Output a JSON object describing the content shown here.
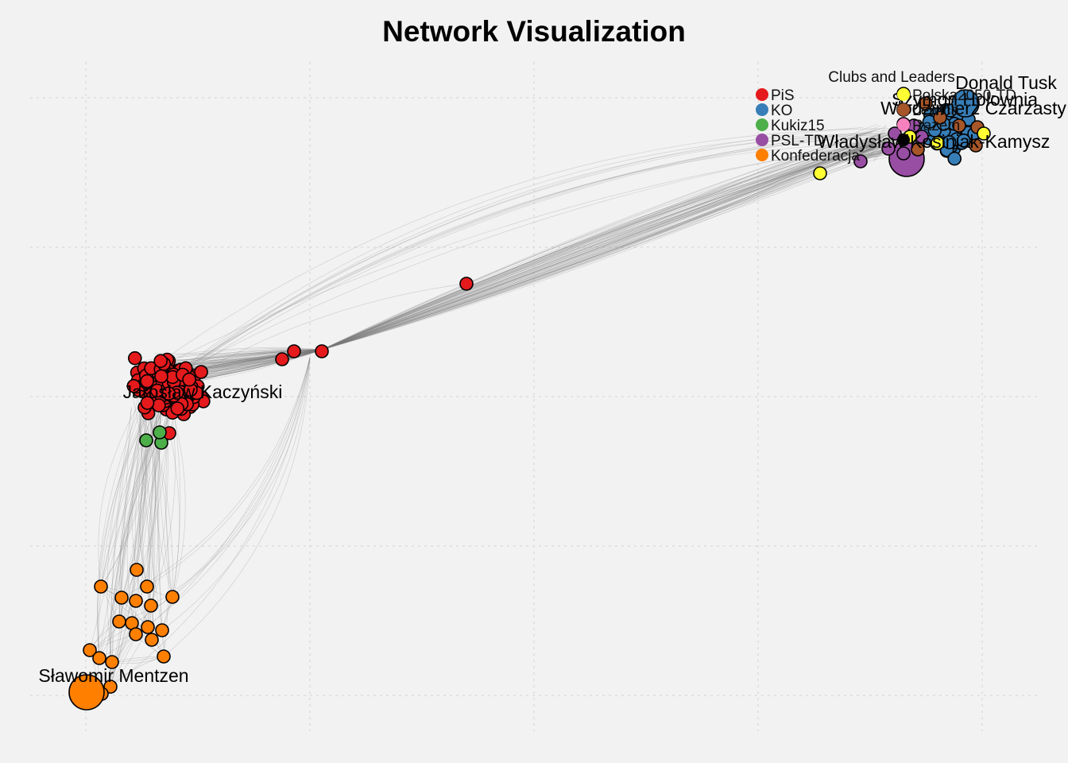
{
  "title": "Network Visualization",
  "colors": {
    "PiS": "#e41a1c",
    "KO": "#377eb8",
    "Kukiz15": "#4daf4a",
    "PSL-TD": "#984ea3",
    "Konfederacja": "#ff7f00",
    "Polska2050-TD": "#ffff33",
    "Lewica": "#a65628",
    "Razem": "#f781bf",
    "Other": "#000000"
  },
  "legend": {
    "title": "Clubs and Leaders",
    "placement": "top-right",
    "items": [
      {
        "label": "PiS",
        "club": "PiS"
      },
      {
        "label": "KO",
        "club": "KO"
      },
      {
        "label": "Kukiz15",
        "club": "Kukiz15"
      },
      {
        "label": "PSL-TD",
        "club": "PSL-TD"
      },
      {
        "label": "Konfederacja",
        "club": "Konfederacja"
      },
      {
        "label": "Polska2050-TD",
        "club": "Polska2050-TD"
      },
      {
        "label": "Lewica",
        "club": "Lewica"
      },
      {
        "label": "Razem",
        "club": "Razem"
      },
      {
        "label": "",
        "club": "Other"
      }
    ]
  },
  "leaders": [
    {
      "name": "Jarosław Kaczyński",
      "club": "PiS"
    },
    {
      "name": "Sławomir Mentzen",
      "club": "Konfederacja"
    },
    {
      "name": "Donald Tusk",
      "club": "KO"
    },
    {
      "name": "Włodzimierz Czarzasty",
      "club": "Lewica"
    },
    {
      "name": "Władysław Kosiniak-Kamysz",
      "club": "PSL-TD"
    },
    {
      "name": "Szymon Hołownia",
      "club": "Polska2050-TD"
    }
  ],
  "chart_data": {
    "type": "network",
    "title": "Network Visualization",
    "grid": true,
    "clusters": [
      {
        "club": "PiS",
        "approx_nodes": 190,
        "leader": "Jarosław Kaczyński"
      },
      {
        "club": "Kukiz15",
        "approx_nodes": 4
      },
      {
        "club": "Konfederacja",
        "approx_nodes": 26,
        "leader": "Sławomir Mentzen"
      },
      {
        "club": "KO",
        "approx_nodes": 60,
        "leader": "Donald Tusk"
      },
      {
        "club": "PSL-TD",
        "approx_nodes": 12,
        "leader": "Władysław Kosiniak-Kamysz"
      },
      {
        "club": "Polska2050-TD",
        "approx_nodes": 10,
        "leader": "Szymon Hołownia"
      },
      {
        "club": "Lewica",
        "approx_nodes": 10,
        "leader": "Włodzimierz Czarzasty"
      },
      {
        "club": "Razem",
        "approx_nodes": 1
      }
    ]
  }
}
